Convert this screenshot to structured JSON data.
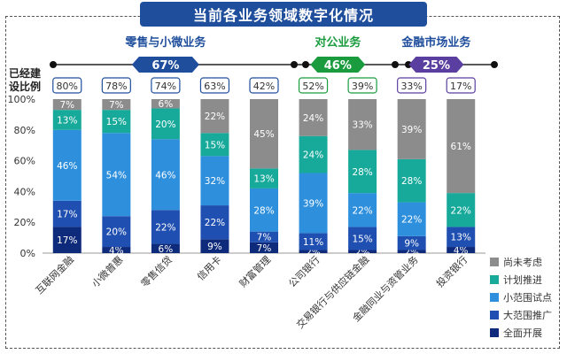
{
  "title": "当前各业务领域数字化情况",
  "row_label": [
    "已经建",
    "设比例"
  ],
  "groups": [
    {
      "name": "零售与小微业务",
      "overall": "67%",
      "color": "#1f4e9c",
      "text_color": "#1f4e9c",
      "cats": [
        0,
        4
      ]
    },
    {
      "name": "对公业务",
      "overall": "46%",
      "color": "#1a9c3e",
      "text_color": "#1a9c3e",
      "cats": [
        5,
        6
      ]
    },
    {
      "name": "金融市场业务",
      "overall": "25%",
      "color": "#5b3fa0",
      "text_color": "#1f4e9c",
      "cats": [
        7,
        8
      ]
    }
  ],
  "chart_data": {
    "type": "bar",
    "stacked": true,
    "categories": [
      "互联网金融",
      "小微普惠",
      "零售信贷",
      "信用卡",
      "财富管理",
      "公司银行",
      "交易银行与供应链金融",
      "金融同业与资管业务",
      "投资银行"
    ],
    "built_ratio": [
      "80%",
      "78%",
      "74%",
      "63%",
      "42%",
      "52%",
      "39%",
      "33%",
      "17%"
    ],
    "series": [
      {
        "name": "全面开展",
        "color": "#0e2a7a",
        "values": [
          17,
          4,
          6,
          9,
          7,
          2,
          2,
          2,
          4
        ]
      },
      {
        "name": "大范围推广",
        "color": "#1f4fb0",
        "values": [
          17,
          20,
          22,
          22,
          7,
          11,
          15,
          9,
          13
        ]
      },
      {
        "name": "小范围试点",
        "color": "#2e8fdc",
        "values": [
          46,
          54,
          46,
          32,
          28,
          39,
          22,
          22,
          0
        ]
      },
      {
        "name": "计划推进",
        "color": "#17a99a",
        "values": [
          13,
          15,
          20,
          15,
          13,
          24,
          28,
          28,
          22
        ]
      },
      {
        "name": "尚未考虑",
        "color": "#8c8c8c",
        "values": [
          7,
          7,
          6,
          22,
          45,
          24,
          33,
          39,
          61
        ]
      }
    ],
    "y_ticks": [
      "0%",
      "20%",
      "40%",
      "60%",
      "80%",
      "100%"
    ],
    "ylim": [
      0,
      100
    ],
    "legend_position": "right"
  }
}
